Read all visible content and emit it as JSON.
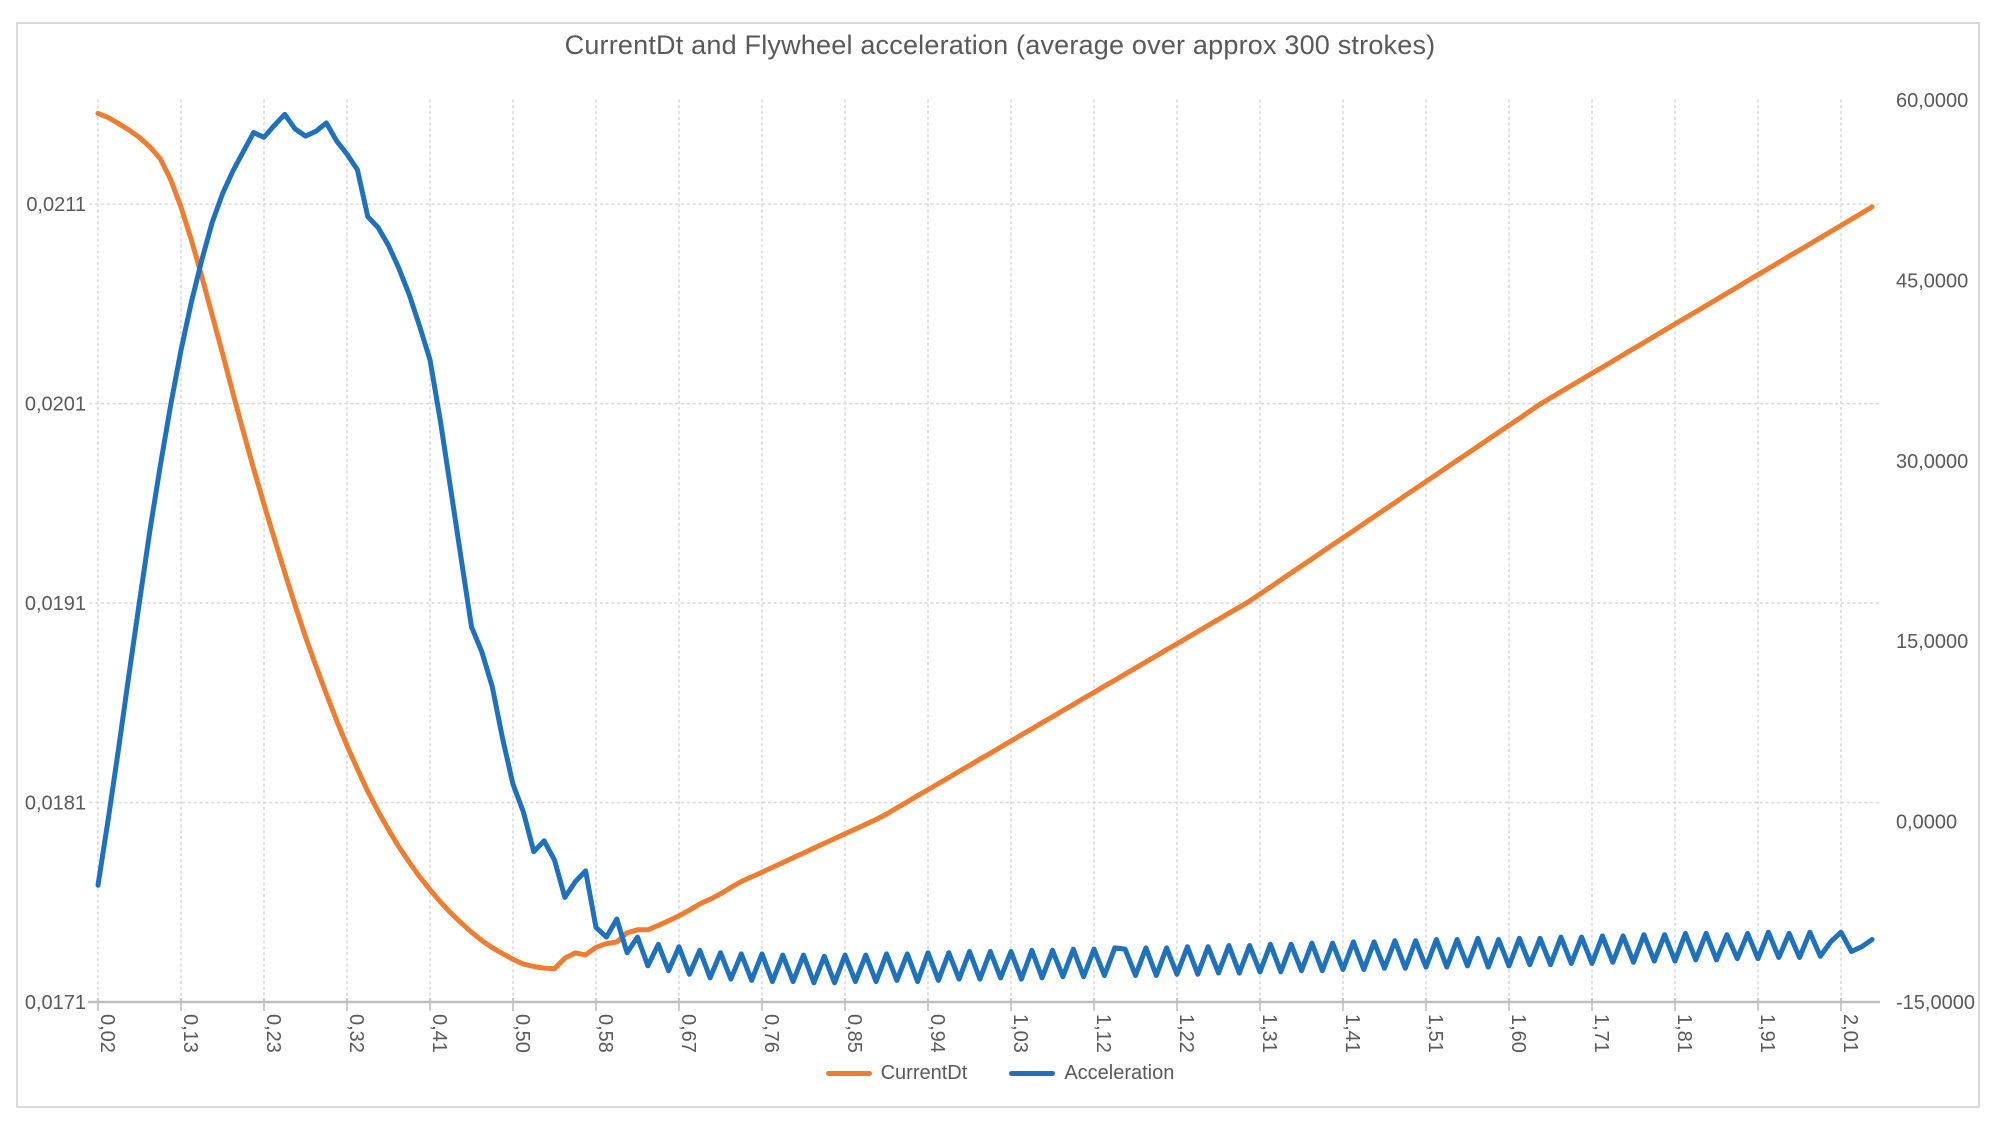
{
  "chart_data": {
    "type": "line",
    "title": "CurrentDt and Flywheel acceleration (average over approx 300 strokes)",
    "legend_position": "bottom",
    "grid": true,
    "x_axis": {
      "tick_labels": [
        "0,02",
        "0,13",
        "0,23",
        "0,32",
        "0,41",
        "0,50",
        "0,58",
        "0,67",
        "0,76",
        "0,85",
        "0,94",
        "1,03",
        "1,12",
        "1,22",
        "1,31",
        "1,41",
        "1,51",
        "1,60",
        "1,71",
        "1,81",
        "1,91",
        "2,01"
      ],
      "points_per_tick": 8
    },
    "y_left": {
      "min": 0.0171,
      "max": 0.021622,
      "tick_labels": [
        "0,0211",
        "0,0201",
        "0,0191",
        "0,0181",
        "0,0171"
      ],
      "tick_values": [
        0.0211,
        0.0201,
        0.0191,
        0.0181,
        0.0171
      ]
    },
    "y_right": {
      "min": -15,
      "max": 60,
      "tick_labels": [
        "60,0000",
        "45,0000",
        "30,0000",
        "15,0000",
        "0,0000",
        "-15,0000"
      ],
      "tick_values": [
        60,
        45,
        30,
        15,
        0,
        -15
      ]
    },
    "series": [
      {
        "name": "CurrentDt",
        "color": "#ED7D31",
        "axis": "left",
        "values": [
          0.021555,
          0.021534,
          0.021503,
          0.021471,
          0.021434,
          0.021387,
          0.021327,
          0.021224,
          0.021085,
          0.02092,
          0.020737,
          0.020545,
          0.020352,
          0.020153,
          0.01996,
          0.019774,
          0.019595,
          0.019422,
          0.019252,
          0.019089,
          0.018931,
          0.018785,
          0.018645,
          0.018511,
          0.018386,
          0.018268,
          0.018156,
          0.018057,
          0.017964,
          0.017878,
          0.017801,
          0.017728,
          0.017663,
          0.017602,
          0.017546,
          0.017497,
          0.01745,
          0.017408,
          0.017372,
          0.017342,
          0.017314,
          0.01729,
          0.017278,
          0.01727,
          0.017267,
          0.01732,
          0.017346,
          0.017336,
          0.017374,
          0.017393,
          0.017401,
          0.017447,
          0.017462,
          0.017462,
          0.017484,
          0.017507,
          0.017532,
          0.01756,
          0.017592,
          0.017615,
          0.017642,
          0.017674,
          0.017704,
          0.017727,
          0.01775,
          0.017775,
          0.017799,
          0.017823,
          0.017847,
          0.017871,
          0.017895,
          0.017919,
          0.017943,
          0.017967,
          0.017991,
          0.018015,
          0.018042,
          0.018073,
          0.018103,
          0.018134,
          0.018164,
          0.018195,
          0.018225,
          0.018256,
          0.018286,
          0.018317,
          0.018347,
          0.018378,
          0.018408,
          0.018439,
          0.018469,
          0.0185,
          0.01853,
          0.018561,
          0.018591,
          0.018622,
          0.018652,
          0.018683,
          0.018713,
          0.018744,
          0.018774,
          0.018805,
          0.018835,
          0.018866,
          0.018896,
          0.018927,
          0.018957,
          0.018988,
          0.019018,
          0.019049,
          0.019079,
          0.01911,
          0.019145,
          0.01918,
          0.019216,
          0.019251,
          0.019286,
          0.019321,
          0.019357,
          0.019392,
          0.019427,
          0.019462,
          0.019498,
          0.019533,
          0.019568,
          0.019603,
          0.019639,
          0.019674,
          0.019709,
          0.019744,
          0.01978,
          0.019815,
          0.01985,
          0.019885,
          0.019921,
          0.019956,
          0.019991,
          0.020026,
          0.020062,
          0.020097,
          0.020128,
          0.020159,
          0.02019,
          0.020221,
          0.020252,
          0.020282,
          0.020313,
          0.020344,
          0.020375,
          0.020406,
          0.020437,
          0.020468,
          0.020499,
          0.02053,
          0.02056,
          0.020591,
          0.020622,
          0.020653,
          0.020684,
          0.020715,
          0.020746,
          0.020777,
          0.020808,
          0.020839,
          0.020869,
          0.0209,
          0.020931,
          0.020962,
          0.020993,
          0.021024,
          0.021055,
          0.021086
        ]
      },
      {
        "name": "Acceleration",
        "color": "#1F71BC",
        "axis": "right",
        "values": [
          -5.3,
          0.3,
          6.2,
          12.3,
          18.3,
          24.2,
          29.6,
          34.6,
          39.2,
          43.2,
          46.7,
          49.8,
          52.2,
          54.1,
          55.7,
          57.3,
          56.9,
          57.9,
          58.8,
          57.6,
          57.0,
          57.4,
          58.1,
          56.6,
          55.5,
          54.2,
          50.3,
          49.4,
          47.9,
          46.0,
          43.8,
          41.2,
          38.4,
          33.3,
          27.6,
          21.9,
          16.2,
          14.1,
          11.2,
          6.9,
          3.1,
          0.8,
          -2.5,
          -1.6,
          -3.2,
          -6.3,
          -5.0,
          -4.1,
          -8.8,
          -9.6,
          -8.1,
          -10.9,
          -9.6,
          -12.0,
          -10.2,
          -12.4,
          -10.4,
          -12.7,
          -10.7,
          -13.0,
          -10.9,
          -13.1,
          -11.0,
          -13.2,
          -11.0,
          -13.3,
          -11.1,
          -13.3,
          -11.1,
          -13.4,
          -11.2,
          -13.4,
          -11.1,
          -13.3,
          -11.1,
          -13.3,
          -11.0,
          -13.2,
          -11.0,
          -13.3,
          -10.9,
          -13.2,
          -10.9,
          -13.1,
          -10.8,
          -13.1,
          -10.8,
          -13.0,
          -10.8,
          -13.1,
          -10.7,
          -13.0,
          -10.7,
          -12.9,
          -10.6,
          -12.9,
          -10.6,
          -12.8,
          -10.5,
          -10.6,
          -12.8,
          -10.5,
          -12.8,
          -10.5,
          -12.7,
          -10.4,
          -12.7,
          -10.4,
          -12.6,
          -10.3,
          -12.6,
          -10.3,
          -12.5,
          -10.2,
          -12.5,
          -10.2,
          -12.4,
          -10.1,
          -12.4,
          -10.1,
          -12.3,
          -10.0,
          -12.3,
          -10.0,
          -12.2,
          -9.9,
          -12.2,
          -9.9,
          -12.1,
          -9.8,
          -12.1,
          -9.8,
          -12.0,
          -9.7,
          -12.1,
          -9.8,
          -12.0,
          -9.7,
          -11.9,
          -9.7,
          -11.9,
          -9.6,
          -11.8,
          -9.6,
          -11.8,
          -9.5,
          -11.7,
          -9.5,
          -11.7,
          -9.4,
          -11.6,
          -9.4,
          -11.6,
          -9.3,
          -11.5,
          -9.3,
          -11.5,
          -9.4,
          -11.4,
          -9.3,
          -11.4,
          -9.2,
          -11.3,
          -9.3,
          -11.3,
          -9.2,
          -11.2,
          -10.0,
          -9.2,
          -10.8,
          -10.4,
          -9.8
        ]
      }
    ]
  },
  "colors": {
    "grid": "#D9D9D9",
    "axis_line": "#BFBFBF",
    "label_text": "#595959",
    "title_text": "#595959",
    "border": "#D9D9D9",
    "background": "#FFFFFF"
  }
}
